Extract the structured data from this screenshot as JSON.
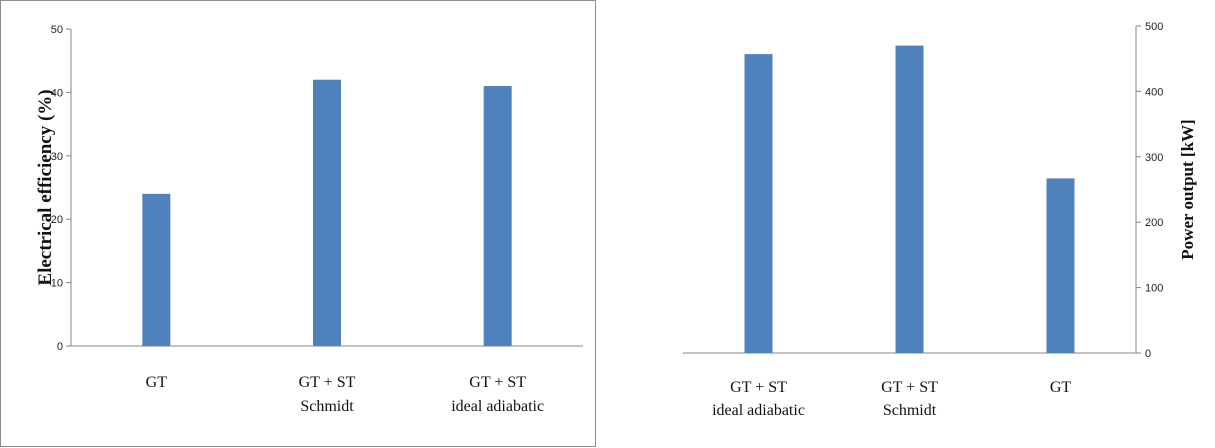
{
  "chart_data": [
    {
      "type": "bar",
      "title": "",
      "xlabel": "",
      "ylabel": "Electrical efficiency  (%)",
      "ylim": [
        0,
        50
      ],
      "yticks": [
        0,
        10,
        20,
        30,
        40,
        50
      ],
      "y_axis_side": "left",
      "bar_color": "#4f81bd",
      "grid": false,
      "categories": [
        [
          "GT"
        ],
        [
          "GT + ST",
          "Schmidt"
        ],
        [
          "GT + ST",
          "ideal adiabatic"
        ]
      ],
      "values": [
        24,
        42,
        41
      ]
    },
    {
      "type": "bar",
      "title": "",
      "xlabel": "",
      "ylabel": "Power output [kW]",
      "ylim": [
        0,
        500
      ],
      "yticks": [
        0,
        100,
        200,
        300,
        400,
        500
      ],
      "y_axis_side": "right",
      "bar_color": "#4f81bd",
      "grid": false,
      "categories": [
        [
          "GT + ST",
          "ideal adiabatic"
        ],
        [
          "GT + ST",
          "Schmidt"
        ],
        [
          "GT"
        ]
      ],
      "values": [
        457,
        470,
        267
      ]
    }
  ]
}
